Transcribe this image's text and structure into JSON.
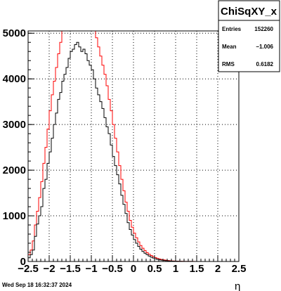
{
  "chart_data": {
    "type": "histogram",
    "title": "",
    "xlabel": "η",
    "ylabel": "",
    "xlim": [
      -2.5,
      2.5
    ],
    "ylim": [
      0,
      5050
    ],
    "grid": true,
    "x_ticks": [
      -2.5,
      -2,
      -1.5,
      -1,
      -0.5,
      0,
      0.5,
      1,
      1.5,
      2,
      2.5
    ],
    "x_tick_labels": [
      "−2.5",
      "−2",
      "−1.5",
      "−1",
      "−0.5",
      "0",
      "0.5",
      "1",
      "1.5",
      "2",
      "2.5"
    ],
    "y_ticks": [
      0,
      1000,
      2000,
      3000,
      4000,
      5000
    ],
    "y_tick_labels": [
      "0",
      "1000",
      "2000",
      "3000",
      "4000",
      "5000"
    ],
    "series": [
      {
        "color": "#000000",
        "x": [
          -2.5,
          -2.45,
          -2.4,
          -2.35,
          -2.3,
          -2.25,
          -2.2,
          -2.15,
          -2.1,
          -2.05,
          -2.0,
          -1.95,
          -1.9,
          -1.85,
          -1.8,
          -1.75,
          -1.7,
          -1.65,
          -1.6,
          -1.55,
          -1.5,
          -1.45,
          -1.4,
          -1.35,
          -1.3,
          -1.25,
          -1.2,
          -1.15,
          -1.1,
          -1.05,
          -1.0,
          -0.95,
          -0.9,
          -0.85,
          -0.8,
          -0.75,
          -0.7,
          -0.65,
          -0.6,
          -0.55,
          -0.5,
          -0.45,
          -0.4,
          -0.35,
          -0.3,
          -0.25,
          -0.2,
          -0.15,
          -0.1,
          -0.05,
          0.0,
          0.05,
          0.1,
          0.15,
          0.2,
          0.25,
          0.3,
          0.35,
          0.4,
          0.45,
          0.5,
          0.55,
          0.6,
          0.65,
          0.7,
          0.75,
          0.8,
          0.85,
          0.9,
          0.95,
          1.0,
          1.05,
          1.1,
          1.15,
          1.2,
          1.25,
          1.3,
          1.35,
          1.4,
          1.45,
          1.5
        ],
        "y": [
          80,
          150,
          250,
          550,
          820,
          1000,
          1200,
          1600,
          1800,
          2150,
          2400,
          2700,
          3000,
          3250,
          3550,
          3700,
          3950,
          4100,
          4250,
          4450,
          4600,
          4650,
          4750,
          4800,
          4700,
          4600,
          4650,
          4550,
          4400,
          4300,
          4200,
          4000,
          3800,
          3650,
          3500,
          3350,
          3150,
          2950,
          2800,
          2550,
          2300,
          2100,
          1900,
          1700,
          1450,
          1250,
          1050,
          850,
          700,
          580,
          480,
          400,
          330,
          270,
          220,
          180,
          150,
          120,
          95,
          75,
          60,
          45,
          35,
          28,
          22,
          17,
          13,
          10,
          8,
          6,
          5,
          4,
          3,
          2,
          2,
          1,
          1,
          1,
          0,
          0,
          0
        ]
      },
      {
        "color": "#ff0000",
        "x": [
          -2.5,
          -2.45,
          -2.4,
          -2.35,
          -2.3,
          -2.25,
          -2.2,
          -2.15,
          -2.1,
          -2.05,
          -2.0,
          -1.95,
          -1.9,
          -1.85,
          -1.8,
          -1.75,
          -1.7,
          -1.65,
          -1.6,
          -1.55,
          -1.5,
          -1.45,
          -1.4,
          -1.35,
          -1.3,
          -1.25,
          -1.2,
          -1.15,
          -1.1,
          -1.05,
          -1.0,
          -0.95,
          -0.9,
          -0.85,
          -0.8,
          -0.75,
          -0.7,
          -0.65,
          -0.6,
          -0.55,
          -0.5,
          -0.45,
          -0.4,
          -0.35,
          -0.3,
          -0.25,
          -0.2,
          -0.15,
          -0.1,
          -0.05,
          0.0,
          0.05,
          0.1,
          0.15,
          0.2,
          0.25,
          0.3,
          0.35,
          0.4,
          0.45,
          0.5,
          0.55,
          0.6,
          0.65,
          0.7,
          0.75,
          0.8,
          0.85,
          0.9,
          0.95,
          1.0,
          1.05,
          1.1,
          1.15,
          1.2,
          1.25,
          1.3,
          1.35,
          1.4,
          1.45,
          1.5
        ],
        "y": [
          150,
          250,
          450,
          800,
          1100,
          1400,
          1750,
          2150,
          2500,
          2900,
          3300,
          3650,
          3950,
          4250,
          4550,
          4800,
          5050,
          5050,
          5050,
          5050,
          5050,
          5050,
          5050,
          5050,
          5050,
          5050,
          5050,
          5050,
          5050,
          5050,
          5050,
          5050,
          4900,
          4700,
          4500,
          4300,
          4100,
          3850,
          3550,
          3300,
          3000,
          2700,
          2400,
          2100,
          1800,
          1550,
          1300,
          1100,
          900,
          750,
          620,
          520,
          430,
          350,
          290,
          240,
          195,
          160,
          130,
          105,
          85,
          68,
          54,
          43,
          34,
          27,
          21,
          16,
          12,
          9,
          7,
          5,
          4,
          3,
          2,
          2,
          1,
          1,
          1,
          0,
          0
        ]
      }
    ]
  },
  "stats_box": {
    "title": "ChiSqXY_x",
    "rows": [
      {
        "label": "Entries",
        "value": "152260"
      },
      {
        "label": "Mean",
        "value": "−1.006"
      },
      {
        "label": "RMS",
        "value": "0.6182"
      }
    ]
  },
  "footer_text": "Wed Sep 18 16:32:37 2024"
}
